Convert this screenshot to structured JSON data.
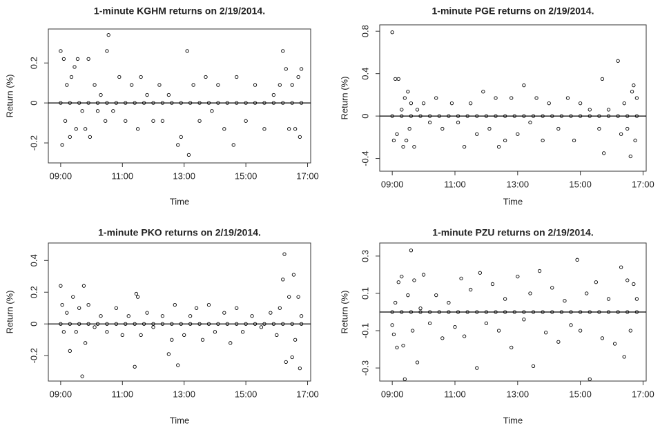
{
  "chart_data": [
    {
      "type": "scatter",
      "title": "1-minute KGHM returns on 2/19/2014.",
      "xlabel": "Time",
      "ylabel": "Return (%)",
      "color": "#000000",
      "x": [
        9.0,
        9.05,
        9.1,
        9.15,
        9.2,
        9.3,
        9.35,
        9.45,
        9.5,
        9.55,
        9.7,
        9.8,
        9.9,
        9.95,
        10.1,
        10.2,
        10.3,
        10.45,
        10.5,
        10.55,
        10.7,
        10.9,
        11.1,
        11.3,
        11.5,
        11.6,
        11.8,
        12.0,
        12.2,
        12.3,
        12.5,
        12.8,
        12.9,
        13.1,
        13.15,
        13.3,
        13.5,
        13.7,
        13.9,
        14.1,
        14.3,
        14.6,
        14.7,
        15.0,
        15.3,
        15.6,
        15.9,
        16.1,
        16.2,
        16.3,
        16.4,
        16.5,
        16.6,
        16.7,
        16.75,
        16.8,
        9.0,
        9.3,
        9.6,
        9.9,
        10.2,
        10.5,
        10.8,
        11.1,
        11.4,
        11.7,
        12.0,
        12.3,
        12.6,
        12.9,
        13.2,
        13.5,
        13.8,
        14.1,
        14.4,
        14.7,
        15.0,
        15.3,
        15.6,
        15.9,
        16.2,
        16.5,
        16.8
      ],
      "values": [
        0.26,
        -0.21,
        0.22,
        -0.09,
        0.09,
        -0.17,
        0.13,
        0.18,
        -0.13,
        0.22,
        -0.04,
        -0.13,
        0.22,
        -0.17,
        0.09,
        -0.04,
        0.04,
        -0.09,
        0.26,
        0.34,
        -0.04,
        0.13,
        -0.09,
        0.09,
        -0.13,
        0.13,
        0.04,
        -0.09,
        0.09,
        -0.09,
        0.04,
        -0.21,
        -0.17,
        0.26,
        -0.26,
        0.09,
        -0.09,
        0.13,
        -0.04,
        0.09,
        -0.13,
        -0.21,
        0.13,
        -0.09,
        0.09,
        -0.13,
        0.04,
        0.09,
        0.26,
        0.17,
        -0.13,
        0.09,
        -0.13,
        0.13,
        -0.17,
        0.17,
        0,
        0,
        0,
        0,
        0,
        0,
        0,
        0,
        0,
        0,
        0,
        0,
        0,
        0,
        0,
        0,
        0,
        0,
        0,
        0,
        0,
        0,
        0,
        0,
        0,
        0,
        0
      ],
      "xlim": [
        8.6,
        17.1
      ],
      "xticks": [
        {
          "value": 9,
          "label": "09:00"
        },
        {
          "value": 11,
          "label": "11:00"
        },
        {
          "value": 13,
          "label": "13:00"
        },
        {
          "value": 15,
          "label": "15:00"
        },
        {
          "value": 17,
          "label": "17:00"
        }
      ],
      "ylim": [
        -0.3,
        0.37
      ],
      "yticks": [
        -0.2,
        0.0,
        0.2
      ],
      "hline": 0
    },
    {
      "type": "scatter",
      "title": "1-minute PGE returns on 2/19/2014.",
      "xlabel": "Time",
      "ylabel": "Return (%)",
      "color": "#000000",
      "x": [
        9.0,
        9.05,
        9.1,
        9.15,
        9.2,
        9.3,
        9.35,
        9.4,
        9.45,
        9.5,
        9.55,
        9.6,
        9.7,
        9.8,
        10.0,
        10.2,
        10.4,
        10.6,
        10.9,
        11.1,
        11.3,
        11.5,
        11.7,
        11.9,
        12.1,
        12.3,
        12.4,
        12.6,
        12.8,
        13.0,
        13.2,
        13.4,
        13.6,
        13.8,
        14.0,
        14.3,
        14.6,
        14.8,
        15.0,
        15.3,
        15.6,
        15.7,
        15.75,
        15.9,
        16.2,
        16.3,
        16.4,
        16.5,
        16.6,
        16.65,
        16.7,
        16.75,
        16.8,
        9.0,
        9.3,
        9.6,
        9.9,
        10.2,
        10.5,
        10.8,
        11.1,
        11.4,
        11.7,
        12.0,
        12.3,
        12.6,
        12.9,
        13.2,
        13.5,
        13.8,
        14.1,
        14.4,
        14.7,
        15.0,
        15.3,
        15.6,
        15.9,
        16.2,
        16.5,
        16.8
      ],
      "values": [
        0.79,
        -0.23,
        0.35,
        -0.17,
        0.35,
        0.06,
        -0.29,
        0.17,
        -0.23,
        0.23,
        -0.12,
        0.12,
        -0.29,
        0.06,
        0.12,
        -0.06,
        0.17,
        -0.12,
        0.12,
        -0.06,
        -0.29,
        0.12,
        -0.17,
        0.23,
        -0.12,
        0.17,
        -0.29,
        -0.23,
        0.17,
        -0.17,
        0.29,
        -0.06,
        0.17,
        -0.23,
        0.12,
        -0.12,
        0.17,
        -0.23,
        0.12,
        0.06,
        -0.12,
        0.35,
        -0.35,
        0.06,
        0.52,
        -0.17,
        0.12,
        -0.12,
        -0.38,
        0.23,
        0.29,
        -0.23,
        0.17,
        0,
        0,
        0,
        0,
        0,
        0,
        0,
        0,
        0,
        0,
        0,
        0,
        0,
        0,
        0,
        0,
        0,
        0,
        0,
        0,
        0,
        0,
        0,
        0,
        0,
        0,
        0
      ],
      "xlim": [
        8.6,
        17.1
      ],
      "xticks": [
        {
          "value": 9,
          "label": "09:00"
        },
        {
          "value": 11,
          "label": "11:00"
        },
        {
          "value": 13,
          "label": "13:00"
        },
        {
          "value": 15,
          "label": "15:00"
        },
        {
          "value": 17,
          "label": "17:00"
        }
      ],
      "ylim": [
        -0.52,
        0.86
      ],
      "yticks": [
        -0.4,
        0.0,
        0.4,
        0.8
      ],
      "hline": 0
    },
    {
      "type": "scatter",
      "title": "1-minute PKO returns on 2/19/2014.",
      "xlabel": "Time",
      "ylabel": "Return (%)",
      "color": "#000000",
      "x": [
        9.0,
        9.05,
        9.1,
        9.2,
        9.3,
        9.4,
        9.5,
        9.6,
        9.7,
        9.75,
        9.8,
        9.9,
        10.1,
        10.3,
        10.5,
        10.8,
        11.0,
        11.2,
        11.4,
        11.45,
        11.5,
        11.6,
        11.8,
        12.0,
        12.3,
        12.5,
        12.6,
        12.7,
        12.8,
        13.0,
        13.2,
        13.4,
        13.6,
        13.8,
        14.0,
        14.3,
        14.5,
        14.7,
        14.9,
        15.2,
        15.5,
        15.8,
        16.0,
        16.1,
        16.2,
        16.25,
        16.3,
        16.4,
        16.5,
        16.55,
        16.6,
        16.7,
        16.75,
        16.8,
        9.0,
        9.3,
        9.6,
        9.9,
        10.2,
        10.5,
        10.8,
        11.1,
        11.4,
        11.7,
        12.0,
        12.3,
        12.6,
        12.9,
        13.2,
        13.5,
        13.8,
        14.1,
        14.4,
        14.7,
        15.0,
        15.3,
        15.6,
        15.9,
        16.2,
        16.5,
        16.8
      ],
      "values": [
        0.24,
        0.12,
        -0.05,
        0.07,
        -0.17,
        0.17,
        -0.05,
        0.1,
        -0.33,
        0.24,
        -0.12,
        0.12,
        -0.02,
        0.05,
        -0.05,
        0.1,
        -0.07,
        0.05,
        -0.27,
        0.19,
        0.17,
        -0.07,
        0.07,
        -0.02,
        0.05,
        -0.19,
        -0.1,
        0.12,
        -0.26,
        -0.07,
        0.05,
        0.1,
        -0.1,
        0.12,
        -0.05,
        0.07,
        -0.12,
        0.1,
        -0.05,
        0.05,
        -0.02,
        0.07,
        -0.07,
        0.1,
        0.28,
        0.44,
        -0.24,
        0.17,
        -0.21,
        0.31,
        -0.1,
        0.17,
        -0.28,
        0.05,
        0,
        0,
        0,
        0,
        0,
        0,
        0,
        0,
        0,
        0,
        0,
        0,
        0,
        0,
        0,
        0,
        0,
        0,
        0,
        0,
        0,
        0,
        0,
        0,
        0,
        0,
        0
      ],
      "xlim": [
        8.6,
        17.1
      ],
      "xticks": [
        {
          "value": 9,
          "label": "09:00"
        },
        {
          "value": 11,
          "label": "11:00"
        },
        {
          "value": 13,
          "label": "13:00"
        },
        {
          "value": 15,
          "label": "15:00"
        },
        {
          "value": 17,
          "label": "17:00"
        }
      ],
      "ylim": [
        -0.36,
        0.51
      ],
      "yticks": [
        -0.2,
        0.0,
        0.2,
        0.4
      ],
      "hline": 0
    },
    {
      "type": "scatter",
      "title": "1-minute PZU returns on 2/19/2014.",
      "xlabel": "Time",
      "ylabel": "Return (%)",
      "color": "#000000",
      "x": [
        9.0,
        9.05,
        9.1,
        9.15,
        9.2,
        9.3,
        9.35,
        9.4,
        9.5,
        9.6,
        9.65,
        9.7,
        9.8,
        9.9,
        10.0,
        10.2,
        10.4,
        10.6,
        10.8,
        11.0,
        11.2,
        11.3,
        11.5,
        11.7,
        11.8,
        12.0,
        12.2,
        12.4,
        12.6,
        12.8,
        13.0,
        13.2,
        13.4,
        13.5,
        13.7,
        13.9,
        14.1,
        14.3,
        14.5,
        14.7,
        14.9,
        15.0,
        15.2,
        15.3,
        15.5,
        15.7,
        15.9,
        16.1,
        16.3,
        16.4,
        16.5,
        16.6,
        16.7,
        16.8,
        9.0,
        9.3,
        9.6,
        9.9,
        10.2,
        10.5,
        10.8,
        11.1,
        11.4,
        11.7,
        12.0,
        12.3,
        12.6,
        12.9,
        13.2,
        13.5,
        13.8,
        14.1,
        14.4,
        14.7,
        15.0,
        15.3,
        15.6,
        15.9,
        16.2,
        16.5,
        16.8
      ],
      "values": [
        -0.07,
        -0.12,
        0.05,
        -0.19,
        0.16,
        0.19,
        -0.18,
        -0.36,
        0.09,
        0.33,
        -0.1,
        0.17,
        -0.27,
        0.02,
        0.2,
        -0.06,
        0.09,
        -0.14,
        0.05,
        -0.08,
        0.18,
        -0.13,
        0.12,
        -0.3,
        0.21,
        -0.06,
        0.15,
        -0.1,
        0.07,
        -0.19,
        0.19,
        -0.04,
        0.1,
        -0.29,
        0.22,
        -0.11,
        0.13,
        -0.16,
        0.06,
        -0.07,
        0.28,
        -0.1,
        0.1,
        -0.36,
        0.16,
        -0.14,
        0.07,
        -0.17,
        0.24,
        -0.24,
        0.17,
        -0.1,
        0.15,
        0.07,
        0,
        0,
        0,
        0,
        0,
        0,
        0,
        0,
        0,
        0,
        0,
        0,
        0,
        0,
        0,
        0,
        0,
        0,
        0,
        0,
        0,
        0,
        0,
        0,
        0,
        0,
        0
      ],
      "xlim": [
        8.6,
        17.1
      ],
      "xticks": [
        {
          "value": 9,
          "label": "09:00"
        },
        {
          "value": 11,
          "label": "11:00"
        },
        {
          "value": 13,
          "label": "13:00"
        },
        {
          "value": 15,
          "label": "15:00"
        },
        {
          "value": 17,
          "label": "17:00"
        }
      ],
      "ylim": [
        -0.37,
        0.37
      ],
      "yticks": [
        -0.3,
        -0.1,
        0.1,
        0.3
      ],
      "hline": 0
    }
  ]
}
